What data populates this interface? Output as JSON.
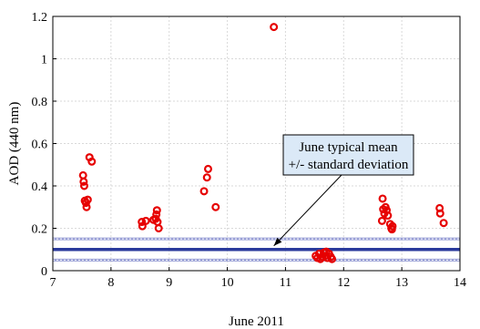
{
  "chart_data": {
    "type": "scatter",
    "title": "",
    "xlabel": "June 2011",
    "ylabel": "AOD (440 nm)",
    "xlim": [
      7,
      14
    ],
    "ylim": [
      0,
      1.2
    ],
    "grid": true,
    "x_ticks": [
      "7",
      "8",
      "9",
      "10",
      "11",
      "12",
      "13",
      "14"
    ],
    "y_ticks": [
      "0",
      "0.2",
      "0.4",
      "0.6",
      "0.8",
      "1",
      "1.2"
    ],
    "marker_color": "#e60000",
    "marker_fill": "#ff9900",
    "mean_line_color": "#2a3a9c",
    "std_line_color": "#9aa0d6",
    "june_typical_mean": 0.1,
    "std_lower": 0.05,
    "std_upper": 0.15,
    "annotation": {
      "lines": [
        "June typical mean",
        "+/- standard deviation"
      ],
      "arrow_target": {
        "x": 10.8,
        "y": 0.1
      }
    },
    "points": [
      {
        "x": 7.52,
        "y": 0.45
      },
      {
        "x": 7.53,
        "y": 0.42
      },
      {
        "x": 7.54,
        "y": 0.4
      },
      {
        "x": 7.55,
        "y": 0.33
      },
      {
        "x": 7.57,
        "y": 0.32
      },
      {
        "x": 7.58,
        "y": 0.3
      },
      {
        "x": 7.6,
        "y": 0.335
      },
      {
        "x": 7.63,
        "y": 0.535
      },
      {
        "x": 7.67,
        "y": 0.515
      },
      {
        "x": 8.53,
        "y": 0.23
      },
      {
        "x": 8.54,
        "y": 0.21
      },
      {
        "x": 8.6,
        "y": 0.235
      },
      {
        "x": 8.73,
        "y": 0.24
      },
      {
        "x": 8.77,
        "y": 0.245
      },
      {
        "x": 8.78,
        "y": 0.265
      },
      {
        "x": 8.79,
        "y": 0.285
      },
      {
        "x": 8.8,
        "y": 0.23
      },
      {
        "x": 8.82,
        "y": 0.2
      },
      {
        "x": 9.6,
        "y": 0.375
      },
      {
        "x": 9.65,
        "y": 0.44
      },
      {
        "x": 9.67,
        "y": 0.48
      },
      {
        "x": 9.8,
        "y": 0.3
      },
      {
        "x": 10.8,
        "y": 1.15
      },
      {
        "x": 11.52,
        "y": 0.07
      },
      {
        "x": 11.55,
        "y": 0.06
      },
      {
        "x": 11.58,
        "y": 0.08
      },
      {
        "x": 11.6,
        "y": 0.055
      },
      {
        "x": 11.63,
        "y": 0.065
      },
      {
        "x": 11.66,
        "y": 0.085
      },
      {
        "x": 11.68,
        "y": 0.07
      },
      {
        "x": 11.7,
        "y": 0.09
      },
      {
        "x": 11.72,
        "y": 0.06
      },
      {
        "x": 11.75,
        "y": 0.08
      },
      {
        "x": 11.78,
        "y": 0.065
      },
      {
        "x": 11.8,
        "y": 0.055
      },
      {
        "x": 12.67,
        "y": 0.34
      },
      {
        "x": 12.68,
        "y": 0.29
      },
      {
        "x": 12.7,
        "y": 0.27
      },
      {
        "x": 12.72,
        "y": 0.3
      },
      {
        "x": 12.66,
        "y": 0.235
      },
      {
        "x": 12.74,
        "y": 0.285
      },
      {
        "x": 12.76,
        "y": 0.26
      },
      {
        "x": 12.8,
        "y": 0.22
      },
      {
        "x": 12.82,
        "y": 0.2
      },
      {
        "x": 12.83,
        "y": 0.195
      },
      {
        "x": 12.84,
        "y": 0.21
      },
      {
        "x": 13.65,
        "y": 0.295
      },
      {
        "x": 13.66,
        "y": 0.27
      },
      {
        "x": 13.72,
        "y": 0.225
      }
    ]
  }
}
